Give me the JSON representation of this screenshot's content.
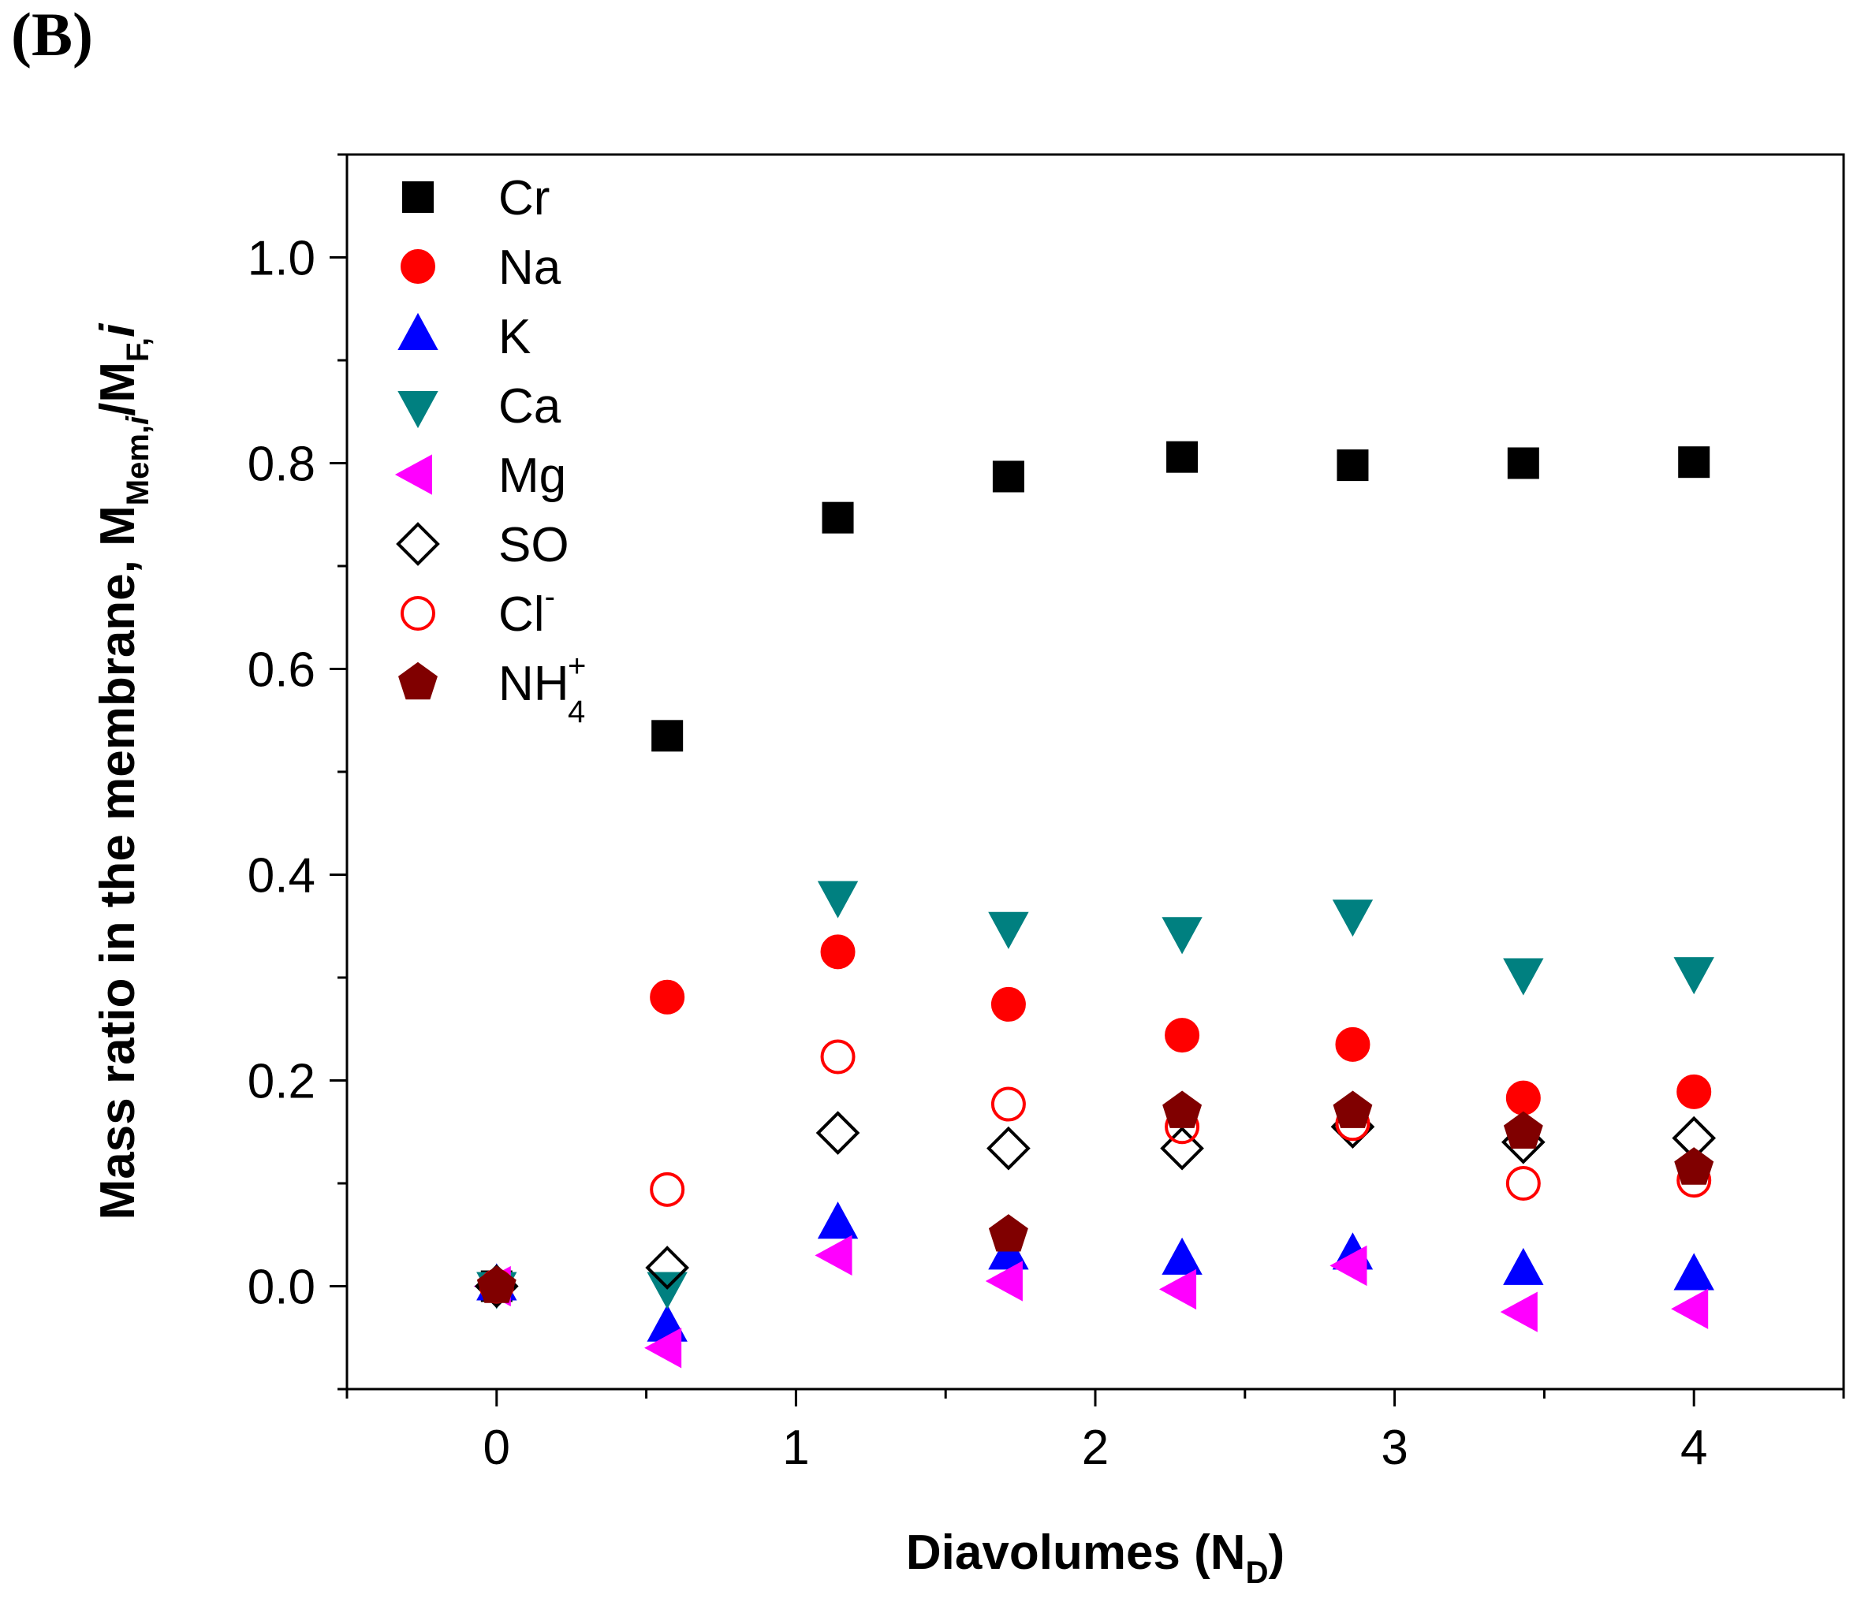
{
  "panel_label": "(B)",
  "chart_data": {
    "type": "scatter",
    "title": "",
    "xlabel": {
      "main": "Diavolumes (N",
      "sub": "D",
      "close": ")"
    },
    "ylabel": {
      "part1": "Mass ratio in the membrane, M",
      "sub1": "Mem,",
      "sub1_i": "i",
      "part2": "/M",
      "sub2": "F",
      "sub2_tail": ",",
      "sub2_i": "i"
    },
    "xlim": [
      -0.5,
      4.5
    ],
    "ylim": [
      -0.1,
      1.1
    ],
    "x_ticks": [
      0,
      1,
      2,
      3,
      4
    ],
    "x_tick_labels": [
      "0",
      "1",
      "2",
      "3",
      "4"
    ],
    "y_ticks": [
      0.0,
      0.2,
      0.4,
      0.6,
      0.8,
      1.0
    ],
    "y_tick_labels": [
      "0.0",
      "0.2",
      "0.4",
      "0.6",
      "0.8",
      "1.0"
    ],
    "legend_position": "top-left",
    "x": [
      0,
      0.57,
      1.14,
      1.71,
      2.29,
      2.86,
      3.43,
      4.0
    ],
    "series": [
      {
        "name": "Cr",
        "label": "Cr",
        "marker": "square",
        "color": "#000000",
        "filled": true,
        "values": [
          0.0,
          0.535,
          0.747,
          0.787,
          0.806,
          0.798,
          0.8,
          0.801
        ]
      },
      {
        "name": "Na",
        "label": "Na",
        "marker": "circle",
        "color": "#ff0000",
        "filled": true,
        "values": [
          0.0,
          0.281,
          0.325,
          0.274,
          0.244,
          0.235,
          0.183,
          0.189
        ]
      },
      {
        "name": "K",
        "label": "K",
        "marker": "triangle-up",
        "color": "#0000ff",
        "filled": true,
        "values": [
          0.0,
          -0.04,
          0.06,
          0.03,
          0.025,
          0.03,
          0.015,
          0.01
        ]
      },
      {
        "name": "Ca",
        "label": "Ca",
        "marker": "triangle-down",
        "color": "#008080",
        "filled": true,
        "values": [
          0.0,
          0.0,
          0.38,
          0.35,
          0.345,
          0.362,
          0.305,
          0.306
        ]
      },
      {
        "name": "Mg",
        "label": "Mg",
        "marker": "triangle-left",
        "color": "#ff00ff",
        "filled": true,
        "values": [
          0.0,
          -0.06,
          0.03,
          0.005,
          -0.003,
          0.02,
          -0.025,
          -0.022
        ]
      },
      {
        "name": "SO",
        "label": "SO",
        "marker": "diamond",
        "color": "#000000",
        "filled": false,
        "values": [
          0.0,
          0.018,
          0.149,
          0.134,
          0.134,
          0.155,
          0.14,
          0.144
        ]
      },
      {
        "name": "Cl-",
        "label": "Cl",
        "label_sup": "-",
        "marker": "circle",
        "color": "#ff0000",
        "filled": false,
        "values": [
          0.0,
          0.094,
          0.223,
          0.177,
          0.155,
          0.158,
          0.1,
          0.103
        ]
      },
      {
        "name": "NH4+",
        "label": "NH",
        "label_sup": "+",
        "label_sub": "4",
        "marker": "pentagon",
        "color": "#800000",
        "filled": true,
        "values": [
          0.0,
          null,
          null,
          0.05,
          0.17,
          0.17,
          0.15,
          0.115
        ]
      }
    ]
  }
}
